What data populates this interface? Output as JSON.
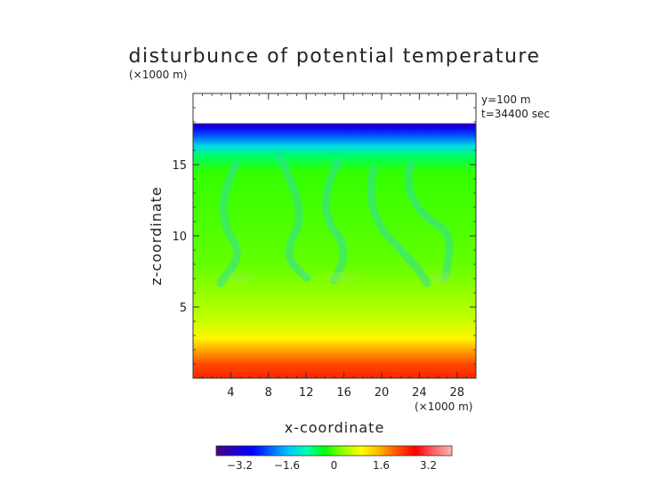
{
  "chart_data": {
    "type": "heatmap",
    "title": "disturbunce of potential temperature",
    "xlabel": "x-coordinate",
    "ylabel": "z-coordinate",
    "x_unit": "(×1000 m)",
    "z_unit": "(×1000 m)",
    "annotations": [
      "y=100 m",
      "t=34400 sec"
    ],
    "xlim": [
      0,
      30
    ],
    "ylim": [
      0,
      20
    ],
    "x_ticks": [
      4,
      8,
      12,
      16,
      20,
      24,
      28
    ],
    "y_ticks": [
      5,
      10,
      15
    ],
    "data_top": 17.9,
    "colorbar": {
      "range": [
        -4,
        4
      ],
      "ticks": [
        "−3.2",
        "−1.6",
        "0",
        "1.6",
        "3.2"
      ],
      "tick_values": [
        -3.2,
        -1.6,
        0,
        1.6,
        3.2
      ],
      "colors": [
        "#4b0082",
        "#1e00c8",
        "#0000ff",
        "#0064ff",
        "#00c8ff",
        "#00ffb4",
        "#00ff00",
        "#96ff00",
        "#ffff00",
        "#ffb400",
        "#ff5000",
        "#ff0000",
        "#ff6464",
        "#ffb4b4"
      ]
    },
    "vertical_profile": [
      {
        "z": 0.0,
        "value": 2.5
      },
      {
        "z": 1.0,
        "value": 2.2
      },
      {
        "z": 2.0,
        "value": 1.6
      },
      {
        "z": 2.8,
        "value": 1.0
      },
      {
        "z": 4.0,
        "value": 0.6
      },
      {
        "z": 6.0,
        "value": 0.3
      },
      {
        "z": 8.0,
        "value": 0.1
      },
      {
        "z": 11.0,
        "value": 0.0
      },
      {
        "z": 14.5,
        "value": -0.1
      },
      {
        "z": 15.5,
        "value": -0.6
      },
      {
        "z": 16.3,
        "value": -1.3
      },
      {
        "z": 17.0,
        "value": -2.2
      },
      {
        "z": 17.6,
        "value": -3.0
      },
      {
        "z": 17.9,
        "value": -3.6
      }
    ]
  }
}
